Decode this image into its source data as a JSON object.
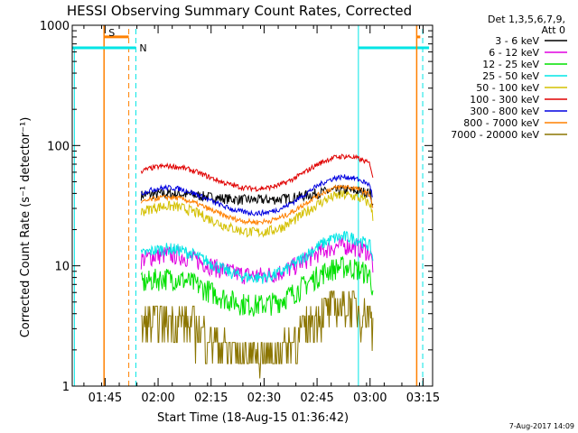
{
  "chart_data": {
    "type": "line",
    "title": "HESSI Observing Summary Count Rates, Corrected",
    "xlabel": "Start Time (18-Aug-15 01:36:42)",
    "ylabel": "Corrected Count Rate (s⁻¹ detector⁻¹)",
    "ylog": true,
    "ylim": [
      1,
      1000
    ],
    "xlim_minutes": [
      -1,
      101
    ],
    "x_ticks": [
      "01:45",
      "02:00",
      "02:15",
      "02:30",
      "02:45",
      "03:00",
      "03:15"
    ],
    "y_ticks": [
      "1",
      "10",
      "100",
      "1000"
    ],
    "legend_header": [
      "Det 1,3,5,6,7,9,",
      "Att 0"
    ],
    "legend_position": "right",
    "footer": "7-Aug-2017 14:09",
    "markers": [
      {
        "label": "S",
        "color": "#ff8000"
      },
      {
        "label": "N",
        "color": "#00e5e5"
      }
    ],
    "series": [
      {
        "name": "3 - 6 keV",
        "color": "#000000"
      },
      {
        "name": "6 - 12 keV",
        "color": "#e000e0"
      },
      {
        "name": "12 - 25 keV",
        "color": "#00e000"
      },
      {
        "name": "25 - 50 keV",
        "color": "#00e5e5"
      },
      {
        "name": "50 - 100 keV",
        "color": "#d4c000"
      },
      {
        "name": "100 - 300 keV",
        "color": "#e00000"
      },
      {
        "name": "300 - 800 keV",
        "color": "#0000e0"
      },
      {
        "name": "800 - 7000 keV",
        "color": "#ff8000"
      },
      {
        "name": "7000 - 20000 keV",
        "color": "#8b7500"
      }
    ]
  }
}
